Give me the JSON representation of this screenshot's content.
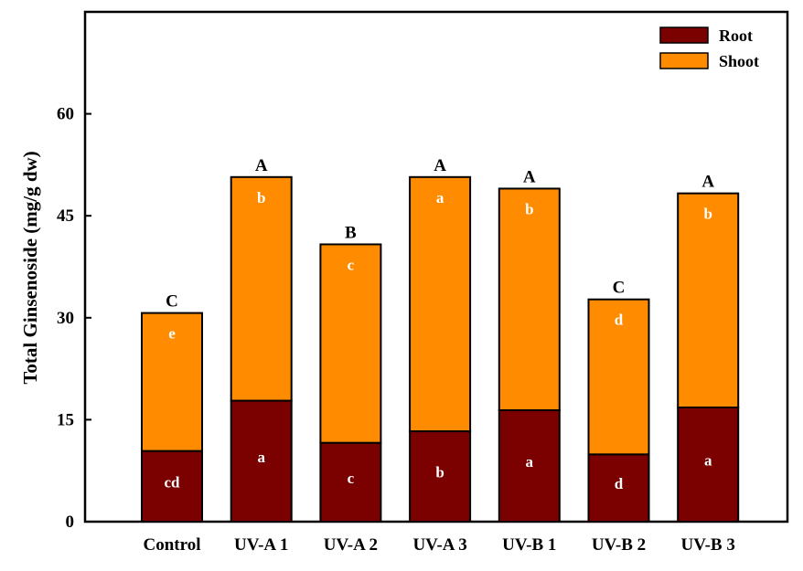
{
  "chart_data": {
    "type": "bar",
    "stacked": true,
    "categories": [
      "Control",
      "UV-A 1",
      "UV-A 2",
      "UV-A 3",
      "UV-B 1",
      "UV-B 2",
      "UV-B 3"
    ],
    "series": [
      {
        "name": "Root",
        "color": "#7b0000",
        "values": [
          10.4,
          17.8,
          11.6,
          13.3,
          16.4,
          9.9,
          16.8
        ],
        "labels": [
          "cd",
          "a",
          "c",
          "b",
          "a",
          "d",
          "a"
        ]
      },
      {
        "name": "Shoot",
        "color": "#ff8c00",
        "values": [
          20.3,
          32.9,
          29.2,
          37.4,
          32.6,
          22.8,
          31.5
        ],
        "labels": [
          "e",
          "b",
          "c",
          "a",
          "b",
          "d",
          "b"
        ]
      }
    ],
    "totals_labels": [
      "C",
      "A",
      "B",
      "A",
      "A",
      "C",
      "A"
    ],
    "ylabel": "Total Ginsenoside (mg/g dw)",
    "xlabel": "",
    "ylim": [
      0,
      75
    ],
    "yticks": [
      0,
      15,
      30,
      45,
      60
    ],
    "grid": false,
    "legend_position": "top-right"
  }
}
